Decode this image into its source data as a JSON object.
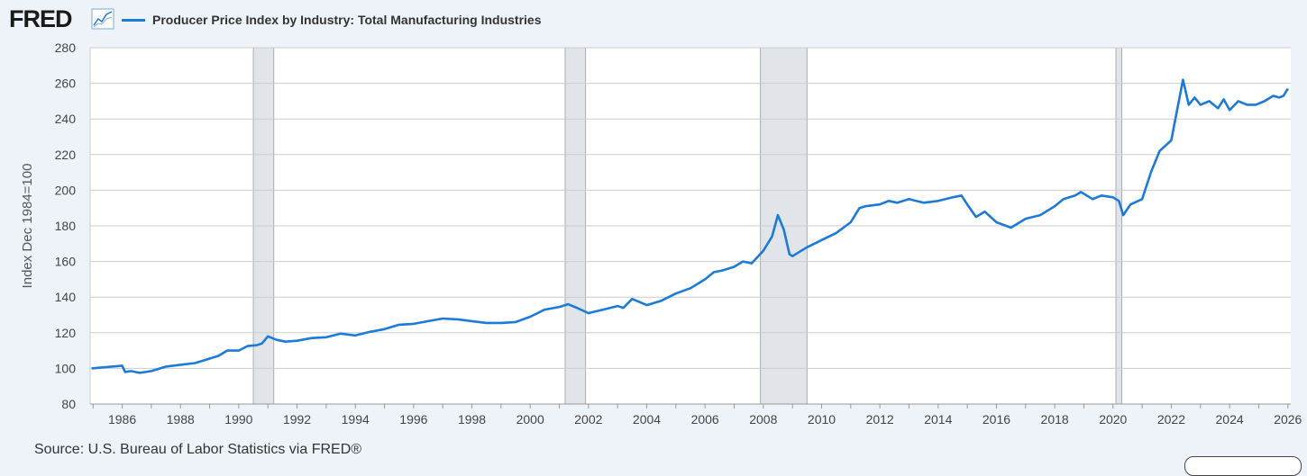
{
  "header": {
    "logo_text": "FRED",
    "logo_icon": "line-chart-icon",
    "series_title": "Producer Price Index by Industry: Total Manufacturing Industries"
  },
  "footer": {
    "source": "Source: U.S. Bureau of Labor Statistics via FRED®"
  },
  "colors": {
    "line": "#1c7ad8",
    "recession": "#e1e5ea",
    "grid": "#cccccc",
    "background": "#eef3f9"
  },
  "chart_data": {
    "type": "line",
    "title": "Producer Price Index by Industry: Total Manufacturing Industries",
    "xlabel": "",
    "ylabel": "Index Dec 1984=100",
    "ylim": [
      80,
      280
    ],
    "xlim": [
      1984.9,
      2026.1
    ],
    "yticks": [
      "80",
      "100",
      "120",
      "140",
      "160",
      "180",
      "200",
      "220",
      "240",
      "260",
      "280"
    ],
    "xticks": [
      "1986",
      "1988",
      "1990",
      "1992",
      "1994",
      "1996",
      "1998",
      "2000",
      "2002",
      "2004",
      "2006",
      "2008",
      "2010",
      "2012",
      "2014",
      "2016",
      "2018",
      "2020",
      "2022",
      "2024",
      "2026"
    ],
    "recessions": [
      [
        1990.5,
        1991.2
      ],
      [
        2001.2,
        2001.9
      ],
      [
        2007.9,
        2009.5
      ],
      [
        2020.1,
        2020.3
      ]
    ],
    "series": [
      {
        "name": "Producer Price Index by Industry: Total Manufacturing Industries",
        "x": [
          1984.95,
          1986.0,
          1986.1,
          1986.3,
          1986.6,
          1987.0,
          1987.5,
          1988.0,
          1988.5,
          1989.0,
          1989.3,
          1989.6,
          1990.0,
          1990.3,
          1990.6,
          1990.8,
          1991.0,
          1991.3,
          1991.6,
          1992.0,
          1992.5,
          1993.0,
          1993.5,
          1994.0,
          1994.5,
          1995.0,
          1995.5,
          1996.0,
          1996.5,
          1997.0,
          1997.5,
          1998.0,
          1998.5,
          1999.0,
          1999.5,
          2000.0,
          2000.5,
          2001.0,
          2001.3,
          2001.6,
          2002.0,
          2002.5,
          2003.0,
          2003.2,
          2003.5,
          2004.0,
          2004.5,
          2005.0,
          2005.5,
          2005.8,
          2006.0,
          2006.3,
          2006.6,
          2007.0,
          2007.3,
          2007.6,
          2008.0,
          2008.3,
          2008.5,
          2008.7,
          2008.9,
          2009.0,
          2009.2,
          2009.5,
          2010.0,
          2010.5,
          2011.0,
          2011.3,
          2011.5,
          2012.0,
          2012.3,
          2012.6,
          2013.0,
          2013.5,
          2014.0,
          2014.5,
          2014.8,
          2015.0,
          2015.3,
          2015.6,
          2016.0,
          2016.5,
          2017.0,
          2017.5,
          2018.0,
          2018.3,
          2018.7,
          2018.9,
          2019.3,
          2019.6,
          2020.0,
          2020.2,
          2020.35,
          2020.6,
          2021.0,
          2021.3,
          2021.6,
          2022.0,
          2022.2,
          2022.4,
          2022.6,
          2022.8,
          2023.0,
          2023.3,
          2023.6,
          2023.8,
          2024.0,
          2024.3,
          2024.6,
          2024.9,
          2025.2,
          2025.5,
          2025.7,
          2025.85,
          2026.0
        ],
        "values": [
          100,
          101.5,
          98,
          98.5,
          97.5,
          98.5,
          101,
          102,
          103,
          105.5,
          107,
          110,
          110,
          112.5,
          113,
          114,
          118,
          116,
          115,
          115.5,
          117,
          117.5,
          119.5,
          118.5,
          120.5,
          122,
          124.5,
          125,
          126.5,
          128,
          127.5,
          126.5,
          125.5,
          125.5,
          126,
          129,
          133,
          134.5,
          136,
          134,
          131,
          133,
          135,
          134,
          139,
          135.5,
          138,
          142,
          145,
          148,
          150,
          154,
          155,
          157,
          160,
          159,
          166,
          174,
          186,
          178,
          164,
          163,
          165,
          168,
          172,
          176,
          182,
          190,
          191,
          192,
          194,
          193,
          195,
          193,
          194,
          196,
          197,
          192,
          185,
          188,
          182,
          179,
          184,
          186,
          191,
          195,
          197,
          199,
          195,
          197,
          196,
          194,
          186,
          192,
          195,
          210,
          222,
          228,
          245,
          262,
          248,
          252,
          248,
          250,
          246,
          251,
          245,
          250,
          248,
          248,
          250,
          253,
          252,
          253,
          257
        ]
      }
    ]
  }
}
